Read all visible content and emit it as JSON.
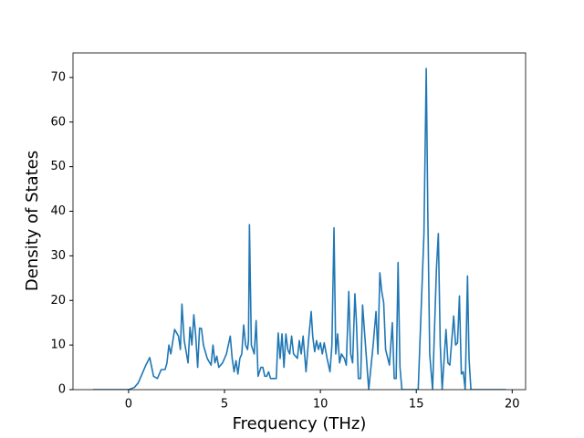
{
  "chart_data": {
    "type": "line",
    "xlabel": "Frequency (THz)",
    "ylabel": "Density of States",
    "xlim": [
      -2.9,
      20.7
    ],
    "ylim": [
      0,
      75.5
    ],
    "xticks": [
      0,
      5,
      10,
      15,
      20
    ],
    "yticks": [
      0,
      10,
      20,
      30,
      40,
      50,
      60,
      70
    ],
    "series": [
      {
        "color": "#1f77b4",
        "x": [
          -1.86,
          0,
          0.3,
          0.5,
          0.7,
          0.9,
          1.1,
          1.3,
          1.5,
          1.7,
          1.9,
          2.0,
          2.1,
          2.2,
          2.4,
          2.6,
          2.7,
          2.78,
          2.9,
          3.1,
          3.2,
          3.3,
          3.4,
          3.5,
          3.6,
          3.7,
          3.8,
          3.9,
          4.1,
          4.3,
          4.4,
          4.5,
          4.6,
          4.7,
          4.9,
          5.1,
          5.3,
          5.4,
          5.5,
          5.6,
          5.7,
          5.8,
          5.9,
          6.0,
          6.1,
          6.2,
          6.25,
          6.3,
          6.4,
          6.55,
          6.65,
          6.75,
          6.9,
          7.0,
          7.1,
          7.2,
          7.3,
          7.4,
          7.7,
          7.8,
          7.9,
          8.0,
          8.1,
          8.2,
          8.3,
          8.4,
          8.5,
          8.6,
          8.8,
          8.9,
          9.0,
          9.1,
          9.25,
          9.4,
          9.52,
          9.6,
          9.7,
          9.8,
          9.9,
          10.0,
          10.1,
          10.2,
          10.35,
          10.5,
          10.6,
          10.71,
          10.8,
          10.9,
          11.0,
          11.1,
          11.25,
          11.35,
          11.48,
          11.58,
          11.68,
          11.8,
          11.88,
          11.98,
          12.1,
          12.2,
          12.3,
          12.52,
          12.75,
          12.9,
          13.0,
          13.1,
          13.2,
          13.3,
          13.4,
          13.6,
          13.75,
          13.85,
          13.95,
          14.05,
          14.15,
          14.25,
          15.1,
          15.4,
          15.52,
          15.6,
          15.7,
          15.85,
          16.05,
          16.15,
          16.25,
          16.35,
          16.55,
          16.65,
          16.75,
          16.95,
          17.05,
          17.15,
          17.25,
          17.35,
          17.45,
          17.55,
          17.67,
          17.75,
          17.85,
          19.67
        ],
        "values": [
          0,
          0,
          0.5,
          1.5,
          3.5,
          5.5,
          7.2,
          3,
          2.5,
          4.5,
          4.5,
          6,
          10,
          8,
          13.5,
          12,
          9,
          19.2,
          11,
          6,
          14,
          10,
          16.8,
          12,
          5,
          13.8,
          13.7,
          10,
          7,
          5.5,
          10,
          6,
          7.5,
          5,
          6,
          8,
          12,
          7,
          4,
          6.5,
          3.5,
          7,
          8,
          14.5,
          10,
          9,
          11,
          37,
          10,
          8,
          15.5,
          3,
          5,
          5,
          3,
          3,
          4,
          2.5,
          2.5,
          12.7,
          7,
          12.5,
          5,
          12.5,
          9,
          8,
          12,
          8,
          7,
          11,
          8,
          12,
          4,
          12,
          17.5,
          12,
          8.5,
          11,
          9,
          10.5,
          8,
          10.5,
          7,
          4,
          10,
          36.3,
          8,
          12.5,
          6,
          8,
          7,
          5.5,
          22,
          8,
          6,
          21.5,
          15,
          2.5,
          2.5,
          19,
          13,
          0,
          10,
          17.5,
          8,
          26.2,
          22,
          19.5,
          9,
          5.5,
          15,
          2.5,
          2.5,
          28.5,
          5,
          0,
          0,
          35,
          72,
          40,
          8,
          0,
          27,
          35,
          10,
          0,
          13.5,
          6,
          5.5,
          16.5,
          10,
          10.5,
          21,
          3.5,
          4,
          0,
          25.5,
          7,
          0,
          0
        ]
      }
    ]
  }
}
